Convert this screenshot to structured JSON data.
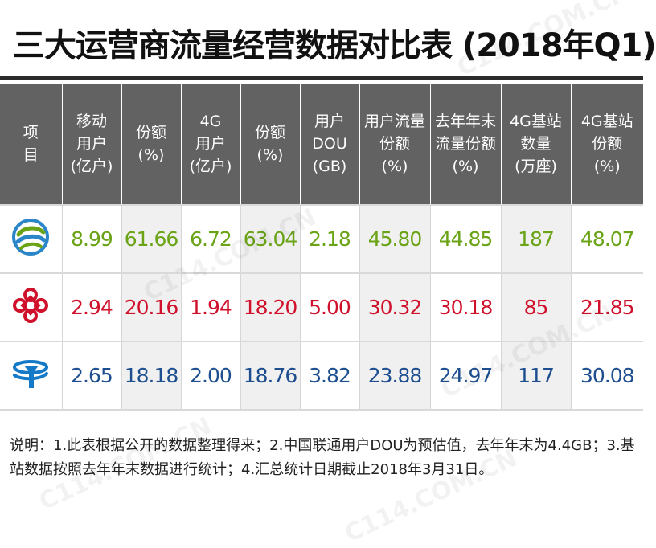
{
  "title": "三大运营商流量经营数据对比表 (2018年Q1)",
  "watermark": "C114.COM.CN",
  "colors": {
    "header_bg": "#626262",
    "mobile": "#6aa416",
    "unicom": "#d0112b",
    "telecom": "#1d4e8f"
  },
  "chart_data": {
    "type": "table",
    "columns": [
      [
        "项",
        "目"
      ],
      [
        "移动",
        "用户",
        "(亿户)"
      ],
      [
        "份额",
        "(%)"
      ],
      [
        "4G",
        "用户",
        "(亿户)"
      ],
      [
        "份额",
        "(%)"
      ],
      [
        "用户",
        "DOU",
        "(GB)"
      ],
      [
        "用户流量",
        "份额",
        "(%)"
      ],
      [
        "去年年末",
        "流量份额",
        "(%)"
      ],
      [
        "4G基站",
        "数量",
        "(万座)"
      ],
      [
        "4G基站",
        "份额",
        "(%)"
      ]
    ],
    "rows": [
      {
        "operator_icon": "china-mobile-logo-icon",
        "values": [
          "8.99",
          "61.66",
          "6.72",
          "63.04",
          "2.18",
          "45.80",
          "44.85",
          "187",
          "48.07"
        ]
      },
      {
        "operator_icon": "china-unicom-logo-icon",
        "values": [
          "2.94",
          "20.16",
          "1.94",
          "18.20",
          "5.00",
          "30.32",
          "30.18",
          "85",
          "21.85"
        ]
      },
      {
        "operator_icon": "china-telecom-logo-icon",
        "values": [
          "2.65",
          "18.18",
          "2.00",
          "18.76",
          "3.82",
          "23.88",
          "24.97",
          "117",
          "30.08"
        ]
      }
    ]
  },
  "note": "说明：1.此表根据公开的数据整理得来；2.中国联通用户DOU为预估值，去年年末为4.4GB；3.基站数据按照去年年末数据进行统计；4.汇总统计日期截止2018年3月31日。"
}
